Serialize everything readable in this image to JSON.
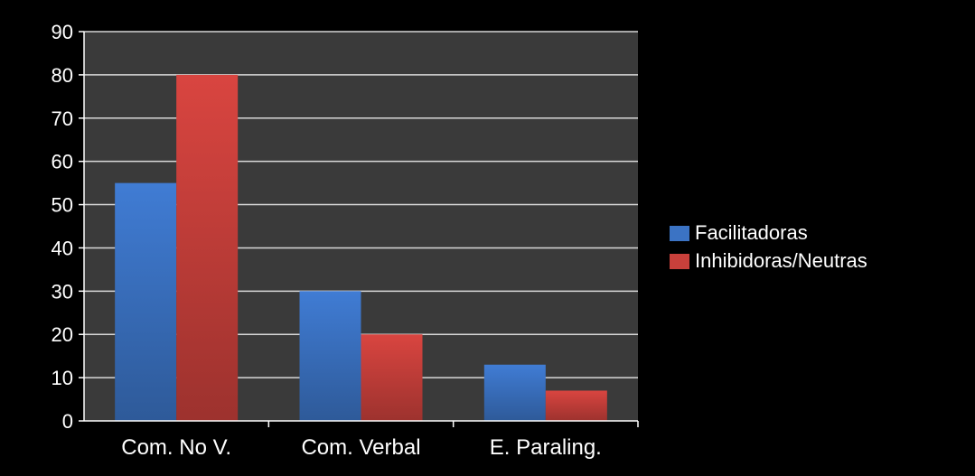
{
  "chart_data": {
    "type": "bar",
    "categories": [
      "Com. No V.",
      "Com. Verbal",
      "E. Paraling."
    ],
    "series": [
      {
        "name": "Facilitadoras",
        "values": [
          55,
          30,
          13
        ],
        "color": "#3b73c4"
      },
      {
        "name": "Inhibidoras/Neutras",
        "values": [
          80,
          20,
          7
        ],
        "color": "#c9403b"
      }
    ],
    "ylim": [
      0,
      90
    ],
    "yticks": [
      "0",
      "10",
      "20",
      "30",
      "40",
      "50",
      "60",
      "70",
      "80",
      "90"
    ],
    "grid": true,
    "legend_position": "right",
    "plot_background": "#3a3a3a",
    "background": "#000000"
  }
}
